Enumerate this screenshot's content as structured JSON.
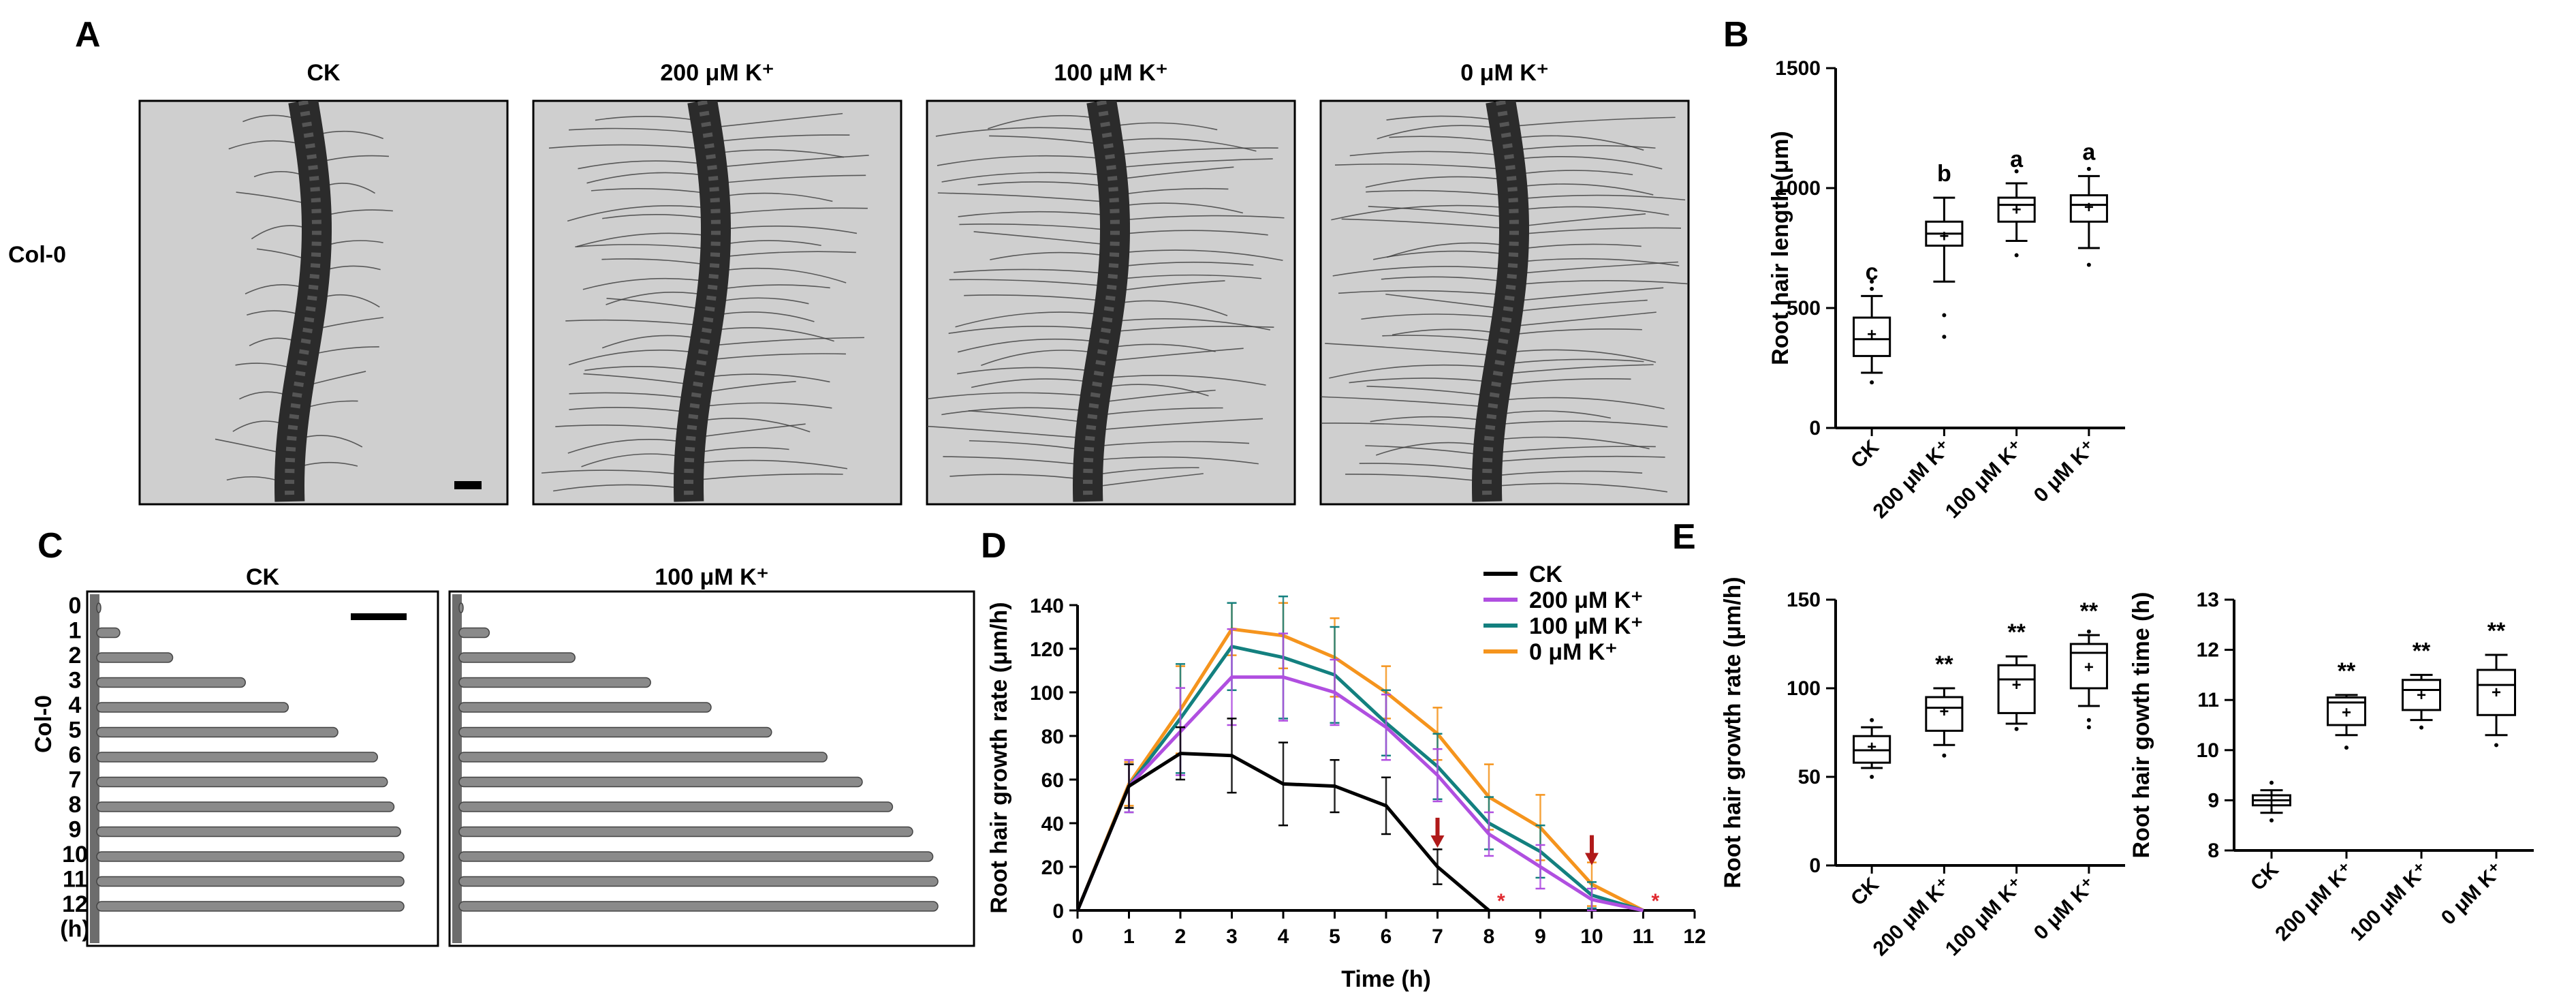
{
  "panels": {
    "A": {
      "letter": "A",
      "row_label": "Col-0",
      "images": [
        {
          "title": "CK",
          "hair_density": 0.45,
          "hair_length": 0.39
        },
        {
          "title": "200 μM K⁺",
          "hair_density": 0.85,
          "hair_length": 0.8
        },
        {
          "title": "100 μM K⁺",
          "hair_density": 0.9,
          "hair_length": 0.92
        },
        {
          "title": "0 μM K⁺",
          "hair_density": 1.0,
          "hair_length": 0.93
        }
      ]
    },
    "C": {
      "letter": "C",
      "row_label": "Col-0",
      "time_labels": [
        "0",
        "1",
        "2",
        "3",
        "4",
        "5",
        "6",
        "7",
        "8",
        "9",
        "10",
        "11",
        "12",
        "(h)"
      ],
      "strips": [
        {
          "title": "CK",
          "lengths": [
            0,
            0.07,
            0.23,
            0.45,
            0.58,
            0.73,
            0.85,
            0.88,
            0.9,
            0.92,
            0.93,
            0.93,
            0.93
          ]
        },
        {
          "title": "100 μM K⁺",
          "lengths": [
            0,
            0.06,
            0.23,
            0.38,
            0.5,
            0.62,
            0.73,
            0.8,
            0.86,
            0.9,
            0.94,
            0.95,
            0.95
          ]
        }
      ]
    }
  },
  "chart_data": [
    {
      "id": "B",
      "letter": "B",
      "type": "box",
      "ylabel": "Root hair length (μm)",
      "ylim": [
        0,
        1500
      ],
      "yticks": [
        "0",
        "500",
        "1000",
        "1500"
      ],
      "categories": [
        "CK",
        "200 μM K⁺",
        "100 μM K⁺",
        "0 μM K⁺"
      ],
      "boxes": [
        {
          "min": 230,
          "q1": 300,
          "median": 370,
          "q3": 460,
          "max": 550,
          "mean": 390,
          "outliers": [
            190,
            580,
            610
          ],
          "label": "c"
        },
        {
          "min": 610,
          "q1": 760,
          "median": 810,
          "q3": 860,
          "max": 960,
          "mean": 800,
          "outliers": [
            470,
            380
          ],
          "label": "b"
        },
        {
          "min": 780,
          "q1": 860,
          "median": 930,
          "q3": 960,
          "max": 1020,
          "mean": 910,
          "outliers": [
            720,
            1070
          ],
          "label": "a"
        },
        {
          "min": 750,
          "q1": 860,
          "median": 930,
          "q3": 970,
          "max": 1050,
          "mean": 920,
          "outliers": [
            680,
            1080
          ],
          "label": "a"
        }
      ]
    },
    {
      "id": "D",
      "letter": "D",
      "type": "line",
      "xlabel": "Time (h)",
      "ylabel": "Root hair growth rate (μm/h)",
      "xlim": [
        0,
        12
      ],
      "ylim": [
        0,
        140
      ],
      "xticks": [
        "0",
        "1",
        "2",
        "3",
        "4",
        "5",
        "6",
        "7",
        "8",
        "9",
        "10",
        "11",
        "12"
      ],
      "yticks": [
        "0",
        "20",
        "40",
        "60",
        "80",
        "100",
        "120",
        "140"
      ],
      "series": [
        {
          "name": "CK",
          "color": "#000000",
          "x": [
            0,
            1,
            2,
            3,
            4,
            5,
            6,
            7,
            8
          ],
          "y": [
            0,
            57,
            72,
            71,
            58,
            57,
            48,
            20,
            0
          ],
          "err": [
            0,
            10,
            12,
            17,
            19,
            12,
            13,
            8,
            0
          ]
        },
        {
          "name": "200 μM K⁺",
          "color": "#b04fe0",
          "x": [
            0,
            1,
            2,
            3,
            4,
            5,
            6,
            7,
            8,
            9,
            10,
            11
          ],
          "y": [
            0,
            57,
            82,
            107,
            107,
            100,
            84,
            62,
            35,
            20,
            5,
            0
          ],
          "err": [
            0,
            12,
            20,
            22,
            20,
            15,
            15,
            12,
            10,
            10,
            5,
            0
          ]
        },
        {
          "name": "100 μM K⁺",
          "color": "#13807f",
          "x": [
            0,
            1,
            2,
            3,
            4,
            5,
            6,
            7,
            8,
            9,
            10,
            11
          ],
          "y": [
            0,
            57,
            88,
            121,
            116,
            108,
            86,
            66,
            40,
            27,
            7,
            0
          ],
          "err": [
            0,
            12,
            25,
            20,
            28,
            22,
            15,
            15,
            12,
            12,
            6,
            0
          ]
        },
        {
          "name": "0 μM K⁺",
          "color": "#f5941d",
          "x": [
            0,
            1,
            2,
            3,
            4,
            5,
            6,
            7,
            8,
            9,
            10,
            11
          ],
          "y": [
            0,
            58,
            92,
            129,
            126,
            116,
            100,
            81,
            52,
            38,
            12,
            0
          ],
          "err": [
            0,
            10,
            20,
            12,
            15,
            18,
            12,
            12,
            15,
            15,
            10,
            0
          ]
        }
      ],
      "annotations": {
        "arrows_at": [
          7,
          10
        ],
        "arrow_color": "#b01a1a",
        "stars_at": [
          8,
          11
        ],
        "star_text": "*",
        "star_color": "#e0292f"
      }
    },
    {
      "id": "E1",
      "letter": "E",
      "type": "box",
      "ylabel": "Root hair growth rate (μm/h)",
      "ylim": [
        0,
        150
      ],
      "yticks": [
        "0",
        "50",
        "100",
        "150"
      ],
      "categories": [
        "CK",
        "200 μM K⁺",
        "100 μM K⁺",
        "0 μM K⁺"
      ],
      "boxes": [
        {
          "min": 55,
          "q1": 58,
          "median": 65,
          "q3": 73,
          "max": 78,
          "mean": 67,
          "outliers": [
            50,
            82
          ],
          "label": ""
        },
        {
          "min": 68,
          "q1": 76,
          "median": 89,
          "q3": 95,
          "max": 100,
          "mean": 87,
          "outliers": [
            62
          ],
          "label": "**"
        },
        {
          "min": 80,
          "q1": 86,
          "median": 105,
          "q3": 113,
          "max": 118,
          "mean": 102,
          "outliers": [
            77
          ],
          "label": "**"
        },
        {
          "min": 90,
          "q1": 100,
          "median": 120,
          "q3": 125,
          "max": 130,
          "mean": 112,
          "outliers": [
            78,
            82,
            132
          ],
          "label": "**"
        }
      ]
    },
    {
      "id": "E2",
      "letter": "",
      "type": "box",
      "ylabel": "Root hair gowth time (h)",
      "ylim": [
        8,
        13
      ],
      "yticks": [
        "8",
        "9",
        "10",
        "11",
        "12",
        "13"
      ],
      "categories": [
        "CK",
        "200 μM K⁺",
        "100 μM K⁺",
        "0 μM K⁺"
      ],
      "boxes": [
        {
          "min": 8.75,
          "q1": 8.9,
          "median": 9.0,
          "q3": 9.1,
          "max": 9.2,
          "mean": 9.0,
          "outliers": [
            8.6,
            9.35
          ],
          "label": ""
        },
        {
          "min": 10.3,
          "q1": 10.5,
          "median": 10.95,
          "q3": 11.05,
          "max": 11.1,
          "mean": 10.75,
          "outliers": [
            10.05
          ],
          "label": "**"
        },
        {
          "min": 10.6,
          "q1": 10.8,
          "median": 11.2,
          "q3": 11.4,
          "max": 11.5,
          "mean": 11.1,
          "outliers": [
            10.45
          ],
          "label": "**"
        },
        {
          "min": 10.3,
          "q1": 10.7,
          "median": 11.3,
          "q3": 11.6,
          "max": 11.9,
          "mean": 11.15,
          "outliers": [
            10.1
          ],
          "label": "**"
        }
      ]
    }
  ]
}
